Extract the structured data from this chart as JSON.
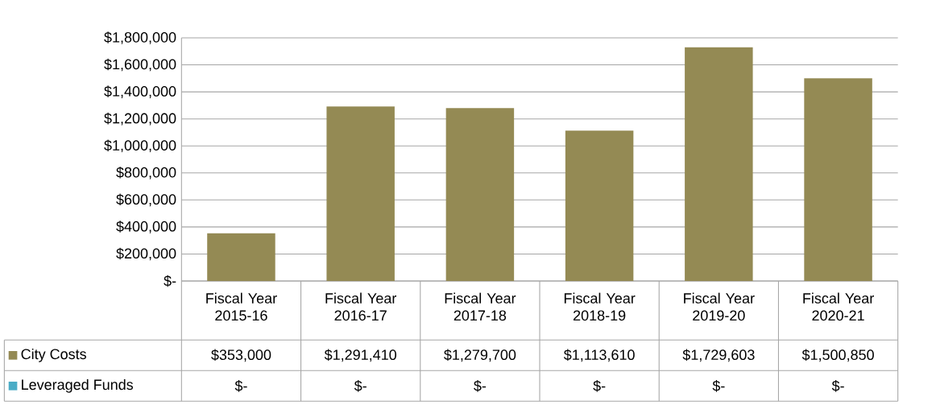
{
  "chart_data": {
    "type": "bar",
    "categories": [
      "Fiscal Year 2015-16",
      "Fiscal Year 2016-17",
      "Fiscal Year 2017-18",
      "Fiscal Year 2018-19",
      "Fiscal Year 2019-20",
      "Fiscal Year 2020-21"
    ],
    "series": [
      {
        "name": "City Costs",
        "color": "#948a54",
        "values": [
          353000,
          1291410,
          1279700,
          1113610,
          1729603,
          1500850
        ],
        "value_labels": [
          "$353,000",
          "$1,291,410",
          "$1,279,700",
          "$1,113,610",
          "$1,729,603",
          "$1,500,850"
        ]
      },
      {
        "name": "Leveraged Funds",
        "color": "#4bacc6",
        "values": [
          0,
          0,
          0,
          0,
          0,
          0
        ],
        "value_labels": [
          "$-",
          "$-",
          "$-",
          "$-",
          "$-",
          "$-"
        ]
      }
    ],
    "ylim": [
      0,
      1800000
    ],
    "yticks": [
      {
        "value": 0,
        "label": "$-"
      },
      {
        "value": 200000,
        "label": "$200,000"
      },
      {
        "value": 400000,
        "label": "$400,000"
      },
      {
        "value": 600000,
        "label": "$600,000"
      },
      {
        "value": 800000,
        "label": "$800,000"
      },
      {
        "value": 1000000,
        "label": "$1,000,000"
      },
      {
        "value": 1200000,
        "label": "$1,200,000"
      },
      {
        "value": 1400000,
        "label": "$1,400,000"
      },
      {
        "value": 1600000,
        "label": "$1,600,000"
      },
      {
        "value": 1800000,
        "label": "$1,800,000"
      }
    ],
    "grid": "y",
    "legend": "bottom"
  }
}
